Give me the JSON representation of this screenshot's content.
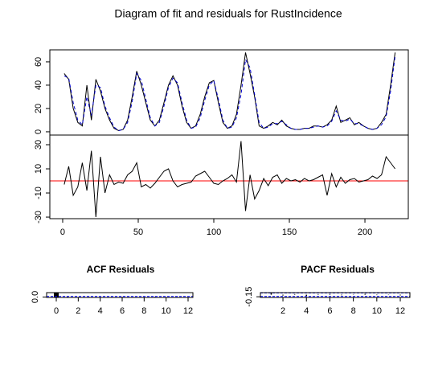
{
  "chart_data": [
    {
      "type": "line",
      "title": "Diagram of fit and residuals for RustIncidence",
      "x": [
        1,
        4,
        7,
        10,
        13,
        16,
        19,
        22,
        25,
        28,
        31,
        34,
        37,
        40,
        43,
        46,
        49,
        52,
        55,
        58,
        61,
        64,
        67,
        70,
        73,
        76,
        79,
        82,
        85,
        88,
        91,
        94,
        97,
        100,
        103,
        106,
        109,
        112,
        115,
        118,
        121,
        124,
        127,
        130,
        133,
        136,
        139,
        142,
        145,
        148,
        151,
        154,
        157,
        160,
        163,
        166,
        169,
        172,
        175,
        178,
        181,
        184,
        187,
        190,
        193,
        196,
        199,
        202,
        205,
        208,
        211,
        214,
        217,
        220
      ],
      "series": [
        {
          "color": "#000000",
          "dash": false,
          "values": [
            50,
            45,
            20,
            8,
            5,
            40,
            10,
            45,
            35,
            20,
            10,
            3,
            1,
            2,
            10,
            30,
            52,
            40,
            25,
            10,
            5,
            10,
            25,
            40,
            48,
            40,
            22,
            8,
            3,
            5,
            15,
            30,
            42,
            44,
            25,
            8,
            3,
            5,
            15,
            40,
            68,
            50,
            30,
            5,
            3,
            5,
            8,
            6,
            10,
            5,
            3,
            2,
            2,
            3,
            3,
            5,
            5,
            4,
            6,
            10,
            22,
            8,
            10,
            12,
            6,
            8,
            5,
            3,
            2,
            3,
            8,
            15,
            40,
            68
          ]
        },
        {
          "color": "#0000cc",
          "dash": true,
          "values": [
            48,
            46,
            25,
            10,
            6,
            30,
            14,
            40,
            38,
            22,
            12,
            4,
            1,
            2,
            8,
            26,
            50,
            44,
            28,
            12,
            5,
            8,
            22,
            38,
            46,
            42,
            25,
            10,
            3,
            4,
            12,
            27,
            40,
            44,
            28,
            10,
            3,
            4,
            12,
            32,
            62,
            55,
            32,
            8,
            3,
            4,
            7,
            7,
            9,
            6,
            3,
            2,
            2,
            3,
            3,
            4,
            5,
            4,
            5,
            9,
            18,
            10,
            9,
            11,
            7,
            7,
            5,
            3,
            2,
            3,
            6,
            13,
            35,
            65
          ]
        }
      ],
      "xlim": [
        -8.5,
        228.7
      ],
      "ylim": [
        -2.8,
        70.3
      ],
      "yticks": [
        0,
        20,
        40,
        60
      ]
    },
    {
      "type": "line",
      "x": [
        1,
        4,
        7,
        10,
        13,
        16,
        19,
        22,
        25,
        28,
        31,
        34,
        37,
        40,
        43,
        46,
        49,
        52,
        55,
        58,
        61,
        64,
        67,
        70,
        73,
        76,
        79,
        82,
        85,
        88,
        91,
        94,
        97,
        100,
        103,
        106,
        109,
        112,
        115,
        118,
        121,
        124,
        127,
        130,
        133,
        136,
        139,
        142,
        145,
        148,
        151,
        154,
        157,
        160,
        163,
        166,
        169,
        172,
        175,
        178,
        181,
        184,
        187,
        190,
        193,
        196,
        199,
        202,
        205,
        208,
        211,
        214,
        217,
        220
      ],
      "series": [
        {
          "color": "#000000",
          "dash": false,
          "values": [
            -3,
            12,
            -12,
            -5,
            15,
            -8,
            25,
            -30,
            20,
            -10,
            5,
            -3,
            -1,
            -2,
            5,
            8,
            15,
            -5,
            -3,
            -6,
            -2,
            3,
            8,
            10,
            0,
            -5,
            -3,
            -2,
            -1,
            4,
            6,
            8,
            3,
            -2,
            -3,
            0,
            2,
            5,
            -1,
            33,
            -25,
            5,
            -15,
            -8,
            2,
            -4,
            3,
            5,
            -2,
            2,
            0,
            1,
            -1,
            2,
            0,
            1,
            3,
            5,
            -12,
            6,
            -5,
            3,
            -2,
            1,
            2,
            -1,
            0,
            1,
            4,
            2,
            5,
            20,
            15,
            10
          ]
        }
      ],
      "hline": 0,
      "hline_color": "#ff0000",
      "xlim": [
        -8.5,
        228.7
      ],
      "xticks": [
        0,
        50,
        100,
        150,
        200
      ],
      "ylim": [
        -31.3,
        38
      ],
      "yticks": [
        -30,
        -10,
        10,
        30
      ]
    },
    {
      "type": "bar",
      "title": "ACF Residuals",
      "x": [
        0,
        1,
        2,
        3,
        4,
        5,
        6,
        7,
        8,
        9,
        10,
        11,
        12
      ],
      "values": [
        1,
        0.12,
        -0.05,
        0.03,
        -0.08,
        0.02,
        0.04,
        -0.03,
        0.01,
        0.05,
        -0.02,
        0.03,
        -0.04
      ],
      "ci": 0.13,
      "ci_color": "#0000ff",
      "xlim": [
        -0.88,
        12.44
      ],
      "xticks": [
        0,
        2,
        4,
        6,
        8,
        10,
        12
      ],
      "ylim": [
        -0.1,
        1.0
      ],
      "yticks": [
        {
          "value": 0,
          "label": "0.0"
        }
      ]
    },
    {
      "type": "bar",
      "title": "PACF Residuals",
      "x": [
        1,
        2,
        3,
        4,
        5,
        6,
        7,
        8,
        9,
        10,
        11,
        12
      ],
      "values": [
        0.12,
        -0.06,
        0.04,
        -0.09,
        0.03,
        0.05,
        -0.04,
        0.02,
        0.06,
        -0.03,
        0.02,
        -0.05
      ],
      "ci": 0.13,
      "ci_color": "#0000ff",
      "xlim": [
        0.08,
        12.82
      ],
      "xticks": [
        2,
        4,
        6,
        8,
        10,
        12
      ],
      "ylim": [
        -0.2,
        0.15
      ],
      "yticks": [
        -0.15
      ]
    }
  ]
}
